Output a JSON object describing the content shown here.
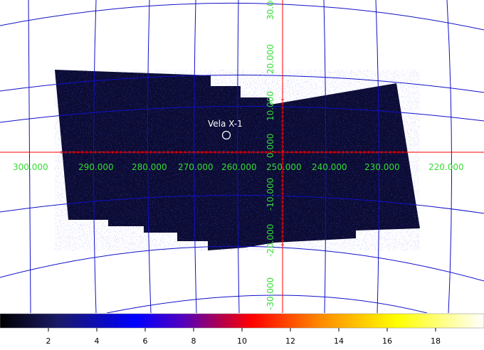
{
  "image": {
    "background_color": "#ffffff",
    "exposure_fill": "#0b0b33",
    "grid_color": "#1010c8",
    "axis_color": "#ff0000",
    "label_color": "#33dd33",
    "marker_color": "#ffffff"
  },
  "source_marker": {
    "label": "Vela X-1",
    "shape": "circle"
  },
  "ra_labels": [
    "300.000",
    "290.000",
    "280.000",
    "270.000",
    "260.000",
    "250.000",
    "240.000",
    "230.000",
    "220.000"
  ],
  "dec_labels": [
    "30.000",
    "20.000",
    "10.000",
    "0.000",
    "-10.000",
    "-20.000",
    "-30.000"
  ],
  "colorbar": {
    "colormap": "heat",
    "ticks": [
      "2",
      "4",
      "6",
      "8",
      "10",
      "12",
      "14",
      "16",
      "18"
    ]
  }
}
